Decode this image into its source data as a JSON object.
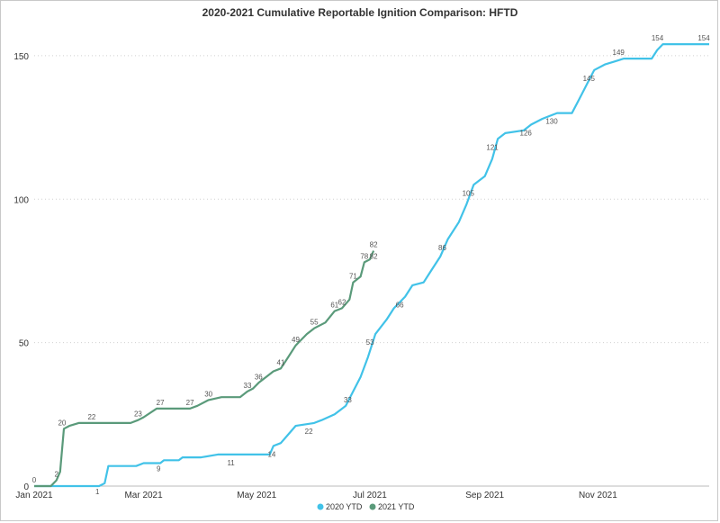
{
  "chart_data": {
    "type": "line",
    "title": "2020-2021 Cumulative Reportable Ignition Comparison: HFTD",
    "xlabel": "",
    "ylabel": "",
    "ylim": [
      0,
      160
    ],
    "yticks": [
      0,
      50,
      100,
      150
    ],
    "x_range": [
      "2021-01-01",
      "2021-12-31"
    ],
    "xticks": [
      {
        "date": "2021-01-01",
        "label": "Jan 2021"
      },
      {
        "date": "2021-03-01",
        "label": "Mar 2021"
      },
      {
        "date": "2021-05-01",
        "label": "May 2021"
      },
      {
        "date": "2021-07-01",
        "label": "Jul 2021"
      },
      {
        "date": "2021-09-01",
        "label": "Sep 2021"
      },
      {
        "date": "2021-11-01",
        "label": "Nov 2021"
      }
    ],
    "grid": "horizontal-dotted",
    "legend_position": "bottom-center",
    "series": [
      {
        "name": "2020 YTD",
        "color": "#41c2e8",
        "points": [
          [
            "2021-01-01",
            0
          ],
          [
            "2021-02-05",
            0
          ],
          [
            "2021-02-08",
            1
          ],
          [
            "2021-02-10",
            7
          ],
          [
            "2021-02-25",
            7
          ],
          [
            "2021-03-01",
            8
          ],
          [
            "2021-03-10",
            8
          ],
          [
            "2021-03-12",
            9
          ],
          [
            "2021-03-20",
            9
          ],
          [
            "2021-03-22",
            10
          ],
          [
            "2021-04-01",
            10
          ],
          [
            "2021-04-10",
            11
          ],
          [
            "2021-05-08",
            11
          ],
          [
            "2021-05-10",
            14
          ],
          [
            "2021-05-14",
            15
          ],
          [
            "2021-05-18",
            18
          ],
          [
            "2021-05-22",
            21
          ],
          [
            "2021-06-01",
            22
          ],
          [
            "2021-06-05",
            23
          ],
          [
            "2021-06-12",
            25
          ],
          [
            "2021-06-18",
            28
          ],
          [
            "2021-06-22",
            33
          ],
          [
            "2021-06-26",
            38
          ],
          [
            "2021-06-30",
            45
          ],
          [
            "2021-07-04",
            53
          ],
          [
            "2021-07-10",
            58
          ],
          [
            "2021-07-14",
            62
          ],
          [
            "2021-07-20",
            66
          ],
          [
            "2021-07-24",
            70
          ],
          [
            "2021-07-30",
            71
          ],
          [
            "2021-08-03",
            75
          ],
          [
            "2021-08-08",
            80
          ],
          [
            "2021-08-12",
            86
          ],
          [
            "2021-08-18",
            92
          ],
          [
            "2021-08-22",
            98
          ],
          [
            "2021-08-26",
            105
          ],
          [
            "2021-09-01",
            108
          ],
          [
            "2021-09-05",
            114
          ],
          [
            "2021-09-08",
            121
          ],
          [
            "2021-09-12",
            123
          ],
          [
            "2021-09-22",
            124
          ],
          [
            "2021-09-26",
            126
          ],
          [
            "2021-10-02",
            128
          ],
          [
            "2021-10-10",
            130
          ],
          [
            "2021-10-18",
            130
          ],
          [
            "2021-10-22",
            135
          ],
          [
            "2021-10-26",
            140
          ],
          [
            "2021-10-30",
            145
          ],
          [
            "2021-11-05",
            147
          ],
          [
            "2021-11-10",
            148
          ],
          [
            "2021-11-15",
            149
          ],
          [
            "2021-11-30",
            149
          ],
          [
            "2021-12-03",
            152
          ],
          [
            "2021-12-06",
            154
          ],
          [
            "2021-12-31",
            154
          ]
        ],
        "data_labels": [
          {
            "date": "2021-02-07",
            "value": 1,
            "text": "1"
          },
          {
            "date": "2021-03-12",
            "value": 9,
            "text": "9"
          },
          {
            "date": "2021-04-20",
            "value": 11,
            "text": "11"
          },
          {
            "date": "2021-05-12",
            "value": 14,
            "text": "14"
          },
          {
            "date": "2021-06-01",
            "value": 22,
            "text": "22"
          },
          {
            "date": "2021-06-22",
            "value": 33,
            "text": "33"
          },
          {
            "date": "2021-07-04",
            "value": 53,
            "text": "53"
          },
          {
            "date": "2021-07-20",
            "value": 66,
            "text": "66"
          },
          {
            "date": "2021-08-12",
            "value": 86,
            "text": "86"
          },
          {
            "date": "2021-08-26",
            "value": 105,
            "text": "105"
          },
          {
            "date": "2021-09-08",
            "value": 121,
            "text": "121"
          },
          {
            "date": "2021-09-26",
            "value": 126,
            "text": "126"
          },
          {
            "date": "2021-10-10",
            "value": 130,
            "text": "130"
          },
          {
            "date": "2021-10-30",
            "value": 145,
            "text": "145"
          },
          {
            "date": "2021-11-15",
            "value": 149,
            "text": "149"
          },
          {
            "date": "2021-12-06",
            "value": 154,
            "text": "154"
          },
          {
            "date": "2021-12-31",
            "value": 154,
            "text": "154"
          }
        ]
      },
      {
        "name": "2021 YTD",
        "color": "#5a9a7a",
        "points": [
          [
            "2021-01-01",
            0
          ],
          [
            "2021-01-10",
            0
          ],
          [
            "2021-01-13",
            2
          ],
          [
            "2021-01-15",
            5
          ],
          [
            "2021-01-17",
            20
          ],
          [
            "2021-01-20",
            21
          ],
          [
            "2021-01-25",
            22
          ],
          [
            "2021-02-22",
            22
          ],
          [
            "2021-02-26",
            23
          ],
          [
            "2021-03-01",
            24
          ],
          [
            "2021-03-08",
            27
          ],
          [
            "2021-03-26",
            27
          ],
          [
            "2021-03-30",
            28
          ],
          [
            "2021-04-05",
            30
          ],
          [
            "2021-04-12",
            31
          ],
          [
            "2021-04-22",
            31
          ],
          [
            "2021-04-26",
            33
          ],
          [
            "2021-04-29",
            34
          ],
          [
            "2021-05-02",
            36
          ],
          [
            "2021-05-06",
            38
          ],
          [
            "2021-05-10",
            40
          ],
          [
            "2021-05-14",
            41
          ],
          [
            "2021-05-18",
            45
          ],
          [
            "2021-05-22",
            49
          ],
          [
            "2021-05-28",
            53
          ],
          [
            "2021-06-01",
            55
          ],
          [
            "2021-06-07",
            57
          ],
          [
            "2021-06-12",
            61
          ],
          [
            "2021-06-16",
            62
          ],
          [
            "2021-06-20",
            65
          ],
          [
            "2021-06-22",
            71
          ],
          [
            "2021-06-26",
            73
          ],
          [
            "2021-06-28",
            78
          ],
          [
            "2021-07-01",
            79
          ],
          [
            "2021-07-03",
            82
          ]
        ],
        "data_labels": [
          {
            "date": "2021-01-01",
            "value": 0,
            "text": "0"
          },
          {
            "date": "2021-01-13",
            "value": 2,
            "text": "2"
          },
          {
            "date": "2021-01-16",
            "value": 20,
            "text": "20"
          },
          {
            "date": "2021-02-01",
            "value": 22,
            "text": "22"
          },
          {
            "date": "2021-02-26",
            "value": 23,
            "text": "23"
          },
          {
            "date": "2021-03-10",
            "value": 27,
            "text": "27"
          },
          {
            "date": "2021-03-26",
            "value": 27,
            "text": "27"
          },
          {
            "date": "2021-04-05",
            "value": 30,
            "text": "30"
          },
          {
            "date": "2021-04-26",
            "value": 33,
            "text": "33"
          },
          {
            "date": "2021-05-02",
            "value": 36,
            "text": "36"
          },
          {
            "date": "2021-05-14",
            "value": 41,
            "text": "41"
          },
          {
            "date": "2021-05-22",
            "value": 49,
            "text": "49"
          },
          {
            "date": "2021-06-01",
            "value": 55,
            "text": "55"
          },
          {
            "date": "2021-06-12",
            "value": 61,
            "text": "61"
          },
          {
            "date": "2021-06-16",
            "value": 62,
            "text": "62"
          },
          {
            "date": "2021-06-22",
            "value": 71,
            "text": "71"
          },
          {
            "date": "2021-06-28",
            "value": 78,
            "text": "78"
          },
          {
            "date": "2021-07-03",
            "value": 82,
            "text": "82"
          },
          {
            "date": "2021-07-03",
            "value": 82,
            "text": "82"
          }
        ]
      }
    ]
  }
}
